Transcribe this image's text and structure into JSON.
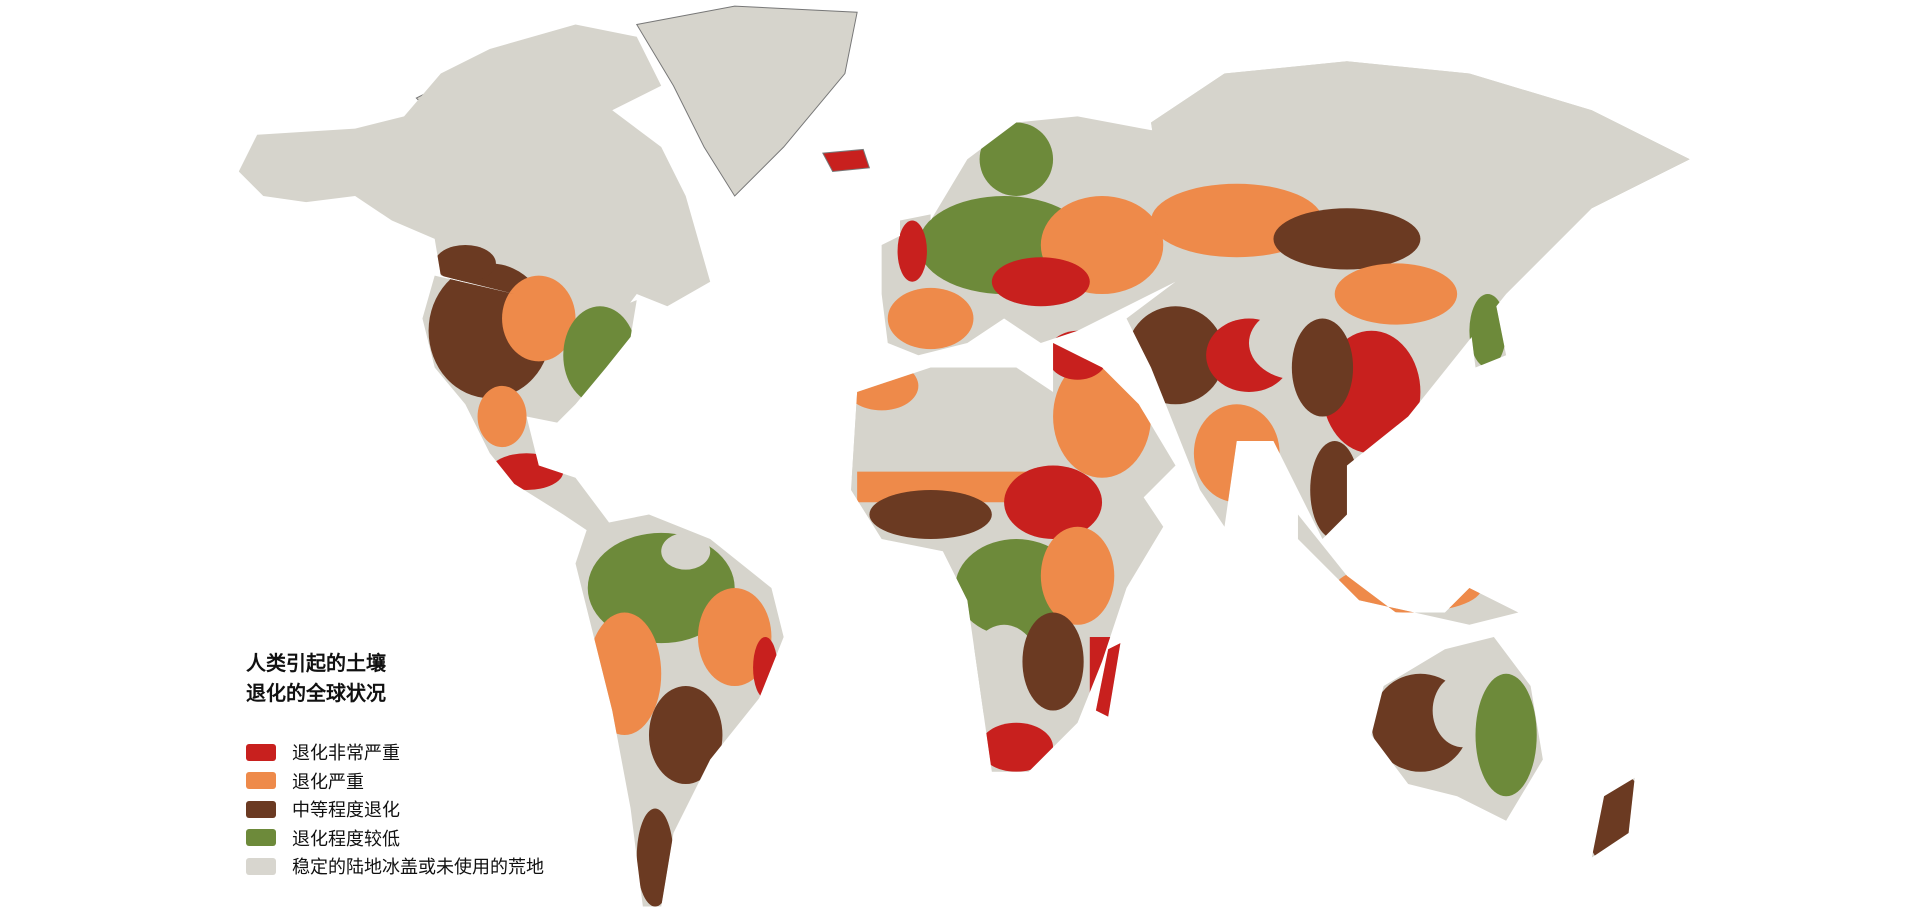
{
  "legend": {
    "title_line1": "人类引起的土壤",
    "title_line2": "退化的全球状况",
    "items": [
      {
        "label": "退化非常严重",
        "color": "#c8201e"
      },
      {
        "label": "退化严重",
        "color": "#ee8a4a"
      },
      {
        "label": "中等程度退化",
        "color": "#6b3a22"
      },
      {
        "label": "退化程度较低",
        "color": "#6d8a3a"
      },
      {
        "label": "稳定的陆地冰盖或未使用的荒地",
        "color": "#d8d6cf"
      }
    ]
  },
  "colors": {
    "background": "#ffffff",
    "border": "#555555"
  }
}
